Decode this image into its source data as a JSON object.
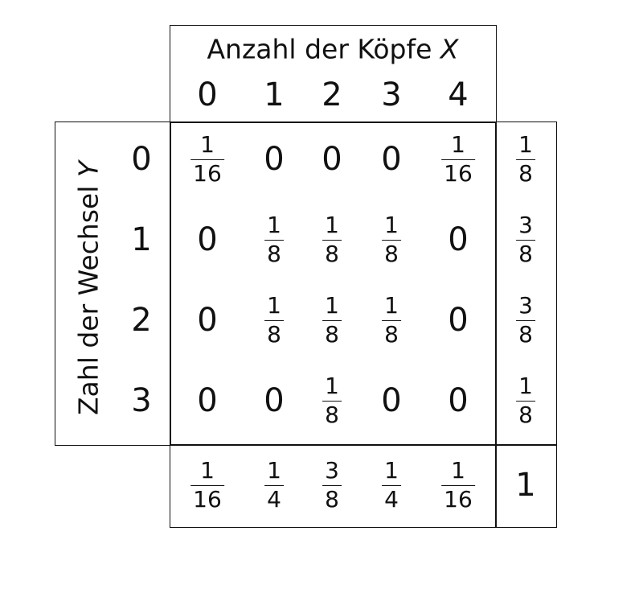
{
  "header": {
    "x_title_text": "Anzahl der Köpfe",
    "x_var": "X",
    "x_values": [
      "0",
      "1",
      "2",
      "3",
      "4"
    ]
  },
  "side": {
    "y_title_text": "Zahl der Wechsel",
    "y_var": "Y",
    "y_values": [
      "0",
      "1",
      "2",
      "3"
    ]
  },
  "cells": [
    [
      {
        "n": "1",
        "d": "16"
      },
      "0",
      "0",
      "0",
      {
        "n": "1",
        "d": "16"
      }
    ],
    [
      "0",
      {
        "n": "1",
        "d": "8"
      },
      {
        "n": "1",
        "d": "8"
      },
      {
        "n": "1",
        "d": "8"
      },
      "0"
    ],
    [
      "0",
      {
        "n": "1",
        "d": "8"
      },
      {
        "n": "1",
        "d": "8"
      },
      {
        "n": "1",
        "d": "8"
      },
      "0"
    ],
    [
      "0",
      "0",
      {
        "n": "1",
        "d": "8"
      },
      "0",
      "0"
    ]
  ],
  "row_marginals": [
    {
      "n": "1",
      "d": "8"
    },
    {
      "n": "3",
      "d": "8"
    },
    {
      "n": "3",
      "d": "8"
    },
    {
      "n": "1",
      "d": "8"
    }
  ],
  "col_marginals": [
    {
      "n": "1",
      "d": "16"
    },
    {
      "n": "1",
      "d": "4"
    },
    {
      "n": "3",
      "d": "8"
    },
    {
      "n": "1",
      "d": "4"
    },
    {
      "n": "1",
      "d": "16"
    }
  ],
  "total": "1"
}
